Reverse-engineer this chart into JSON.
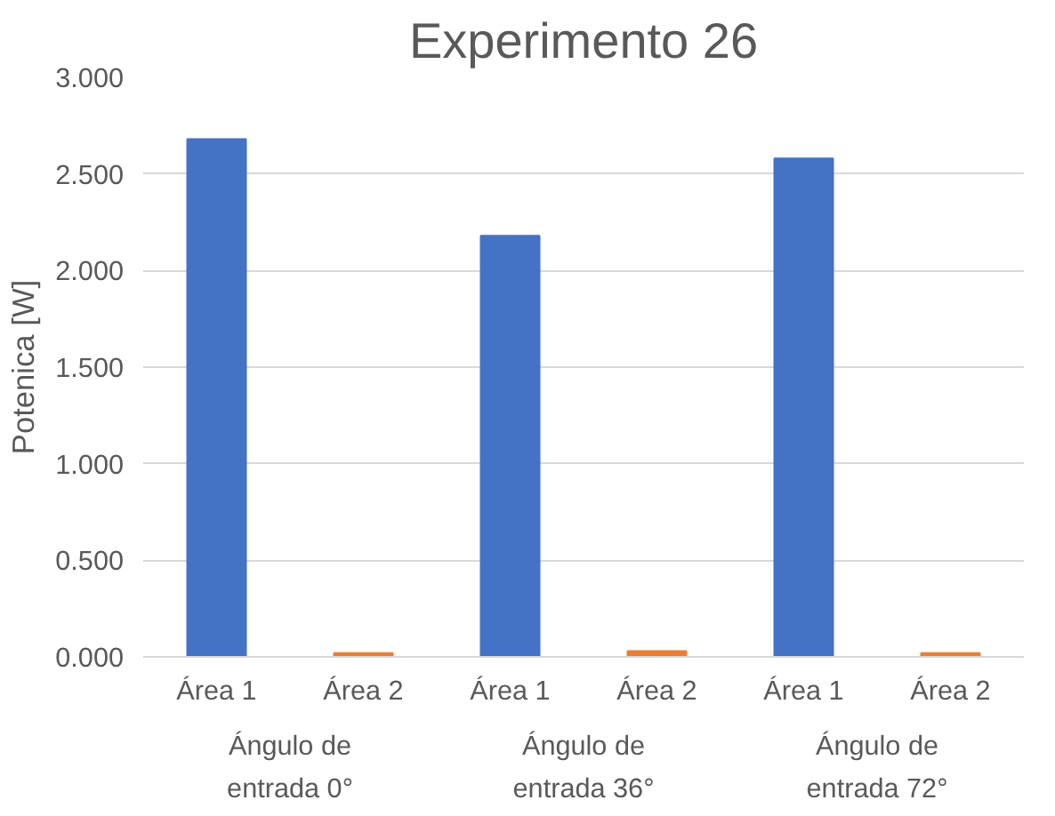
{
  "chart_data": {
    "type": "bar",
    "title": "Experimento 26",
    "ylabel": "Potenica [W]",
    "categories": [
      "Ángulo de entrada 0°",
      "Ángulo de entrada 36°",
      "Ángulo de entrada 72°"
    ],
    "series": [
      {
        "name": "Área 1",
        "color": "#4472c4",
        "values": [
          2.68,
          2.18,
          2.58
        ]
      },
      {
        "name": "Área 2",
        "color": "#ed7d31",
        "values": [
          0.02,
          0.03,
          0.02
        ]
      }
    ],
    "ylim": [
      0,
      3
    ],
    "yticks": [
      {
        "value": 0,
        "label": "0.000"
      },
      {
        "value": 0.5,
        "label": "0.500"
      },
      {
        "value": 1,
        "label": "1.000"
      },
      {
        "value": 1.5,
        "label": "1.500"
      },
      {
        "value": 2,
        "label": "2.000"
      },
      {
        "value": 2.5,
        "label": "2.500"
      },
      {
        "value": 3,
        "label": "3.000"
      }
    ],
    "grid": "y"
  }
}
